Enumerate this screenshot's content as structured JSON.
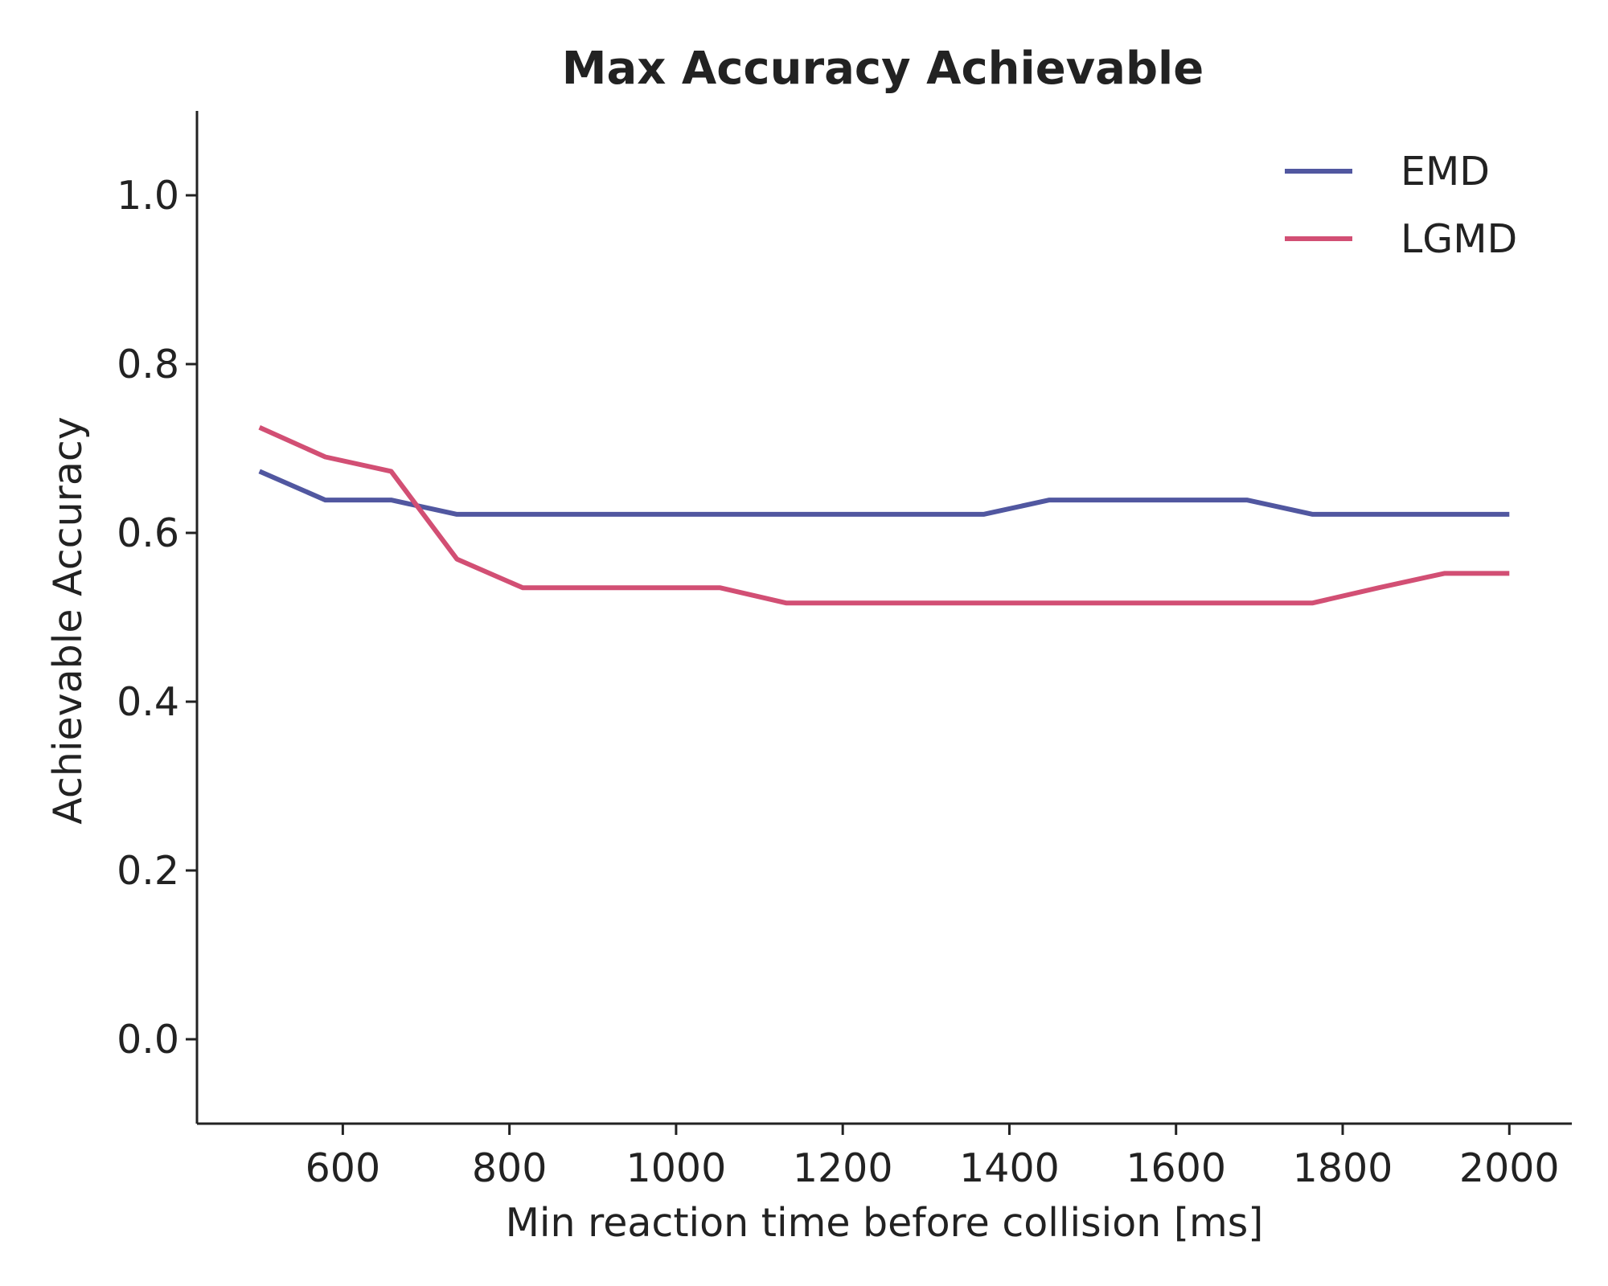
{
  "chart_data": {
    "type": "line",
    "title": "Max Accuracy Achievable",
    "xlabel": "Min reaction time before collision [ms]",
    "ylabel": "Achievable Accuracy",
    "xlim": [
      425,
      2075
    ],
    "ylim": [
      -0.1,
      1.1
    ],
    "xticks": [
      600,
      800,
      1000,
      1200,
      1400,
      1600,
      1800,
      2000
    ],
    "yticks": [
      0.0,
      0.2,
      0.4,
      0.6,
      0.8,
      1.0
    ],
    "xtick_labels": [
      "600",
      "800",
      "1000",
      "1200",
      "1400",
      "1600",
      "1800",
      "2000"
    ],
    "ytick_labels": [
      "0.0",
      "0.2",
      "0.4",
      "0.6",
      "0.8",
      "1.0"
    ],
    "grid": false,
    "legend_position": "top-right",
    "series": [
      {
        "name": "EMD",
        "color": "#5157a0",
        "x": [
          500,
          579,
          658,
          737,
          816,
          895,
          974,
          1053,
          1132,
          1211,
          1290,
          1369,
          1448,
          1527,
          1606,
          1685,
          1764,
          1843,
          1922,
          2000
        ],
        "y": [
          0.673,
          0.639,
          0.639,
          0.622,
          0.622,
          0.622,
          0.622,
          0.622,
          0.622,
          0.622,
          0.622,
          0.622,
          0.639,
          0.639,
          0.639,
          0.639,
          0.622,
          0.622,
          0.622,
          0.622
        ]
      },
      {
        "name": "LGMD",
        "color": "#d24f74",
        "x": [
          500,
          579,
          658,
          737,
          816,
          895,
          974,
          1053,
          1132,
          1211,
          1290,
          1369,
          1448,
          1527,
          1606,
          1685,
          1764,
          1843,
          1922,
          2000
        ],
        "y": [
          0.725,
          0.69,
          0.673,
          0.569,
          0.535,
          0.535,
          0.535,
          0.535,
          0.517,
          0.517,
          0.517,
          0.517,
          0.517,
          0.517,
          0.517,
          0.517,
          0.517,
          0.535,
          0.552,
          0.552
        ]
      }
    ]
  }
}
